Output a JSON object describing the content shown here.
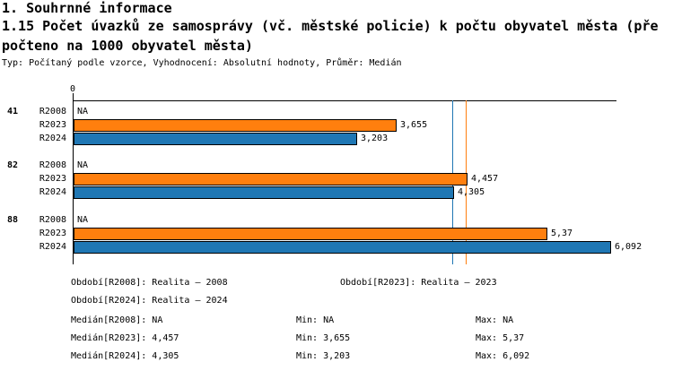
{
  "header": {
    "section_title": "1. Souhrnné informace",
    "indicator_title_line1": "1.15 Počet úvazků ze samosprávy (vč. městské policie) k počtu obyvatel města (pře",
    "indicator_title_line2": "počteno na 1000 obyvatel města)",
    "meta": "Typ: Počítaný podle vzorce, Vyhodnocení: Absolutní hodnoty, Průměr: Medián"
  },
  "chart_data": {
    "type": "bar",
    "orientation": "horizontal",
    "title": "1.15 Počet úvazků ze samosprávy (vč. městské policie) k počtu obyvatel města (přepočteno na 1000 obyvatel města)",
    "axis_zero_label": "0",
    "x_axis_start": 0,
    "x_axis_approx_max": 6.17,
    "grid": false,
    "series_colors": {
      "R2008": "#ffffff",
      "R2023": "#ff7f0e",
      "R2024": "#1f77b4"
    },
    "groups": [
      {
        "id": "41",
        "rows": [
          {
            "label": "R2008",
            "value": null,
            "display": "NA"
          },
          {
            "label": "R2023",
            "value": 3.655,
            "display": "3,655"
          },
          {
            "label": "R2024",
            "value": 3.203,
            "display": "3,203"
          }
        ]
      },
      {
        "id": "82",
        "rows": [
          {
            "label": "R2008",
            "value": null,
            "display": "NA"
          },
          {
            "label": "R2023",
            "value": 4.457,
            "display": "4,457"
          },
          {
            "label": "R2024",
            "value": 4.305,
            "display": "4,305"
          }
        ]
      },
      {
        "id": "88",
        "rows": [
          {
            "label": "R2008",
            "value": null,
            "display": "NA"
          },
          {
            "label": "R2023",
            "value": 5.37,
            "display": "5,37"
          },
          {
            "label": "R2024",
            "value": 6.092,
            "display": "6,092"
          }
        ]
      }
    ],
    "median_lines": [
      {
        "series": "R2023",
        "value": 4.457,
        "display": "4,457",
        "color": "#ff7f0e"
      },
      {
        "series": "R2024",
        "value": 4.305,
        "display": "4,305",
        "color": "#1f77b4"
      }
    ]
  },
  "footer": {
    "period_r2008": "Období[R2008]: Realita – 2008",
    "period_r2023": "Období[R2023]: Realita – 2023",
    "period_r2024": "Období[R2024]: Realita – 2024",
    "median_r2008": "Medián[R2008]: NA",
    "min_r2008": "Min: NA",
    "max_r2008": "Max: NA",
    "median_r2023": "Medián[R2023]: 4,457",
    "min_r2023": "Min: 3,655",
    "max_r2023": "Max: 5,37",
    "median_r2024": "Medián[R2024]: 4,305",
    "min_r2024": "Min: 3,203",
    "max_r2024": "Max: 6,092"
  }
}
